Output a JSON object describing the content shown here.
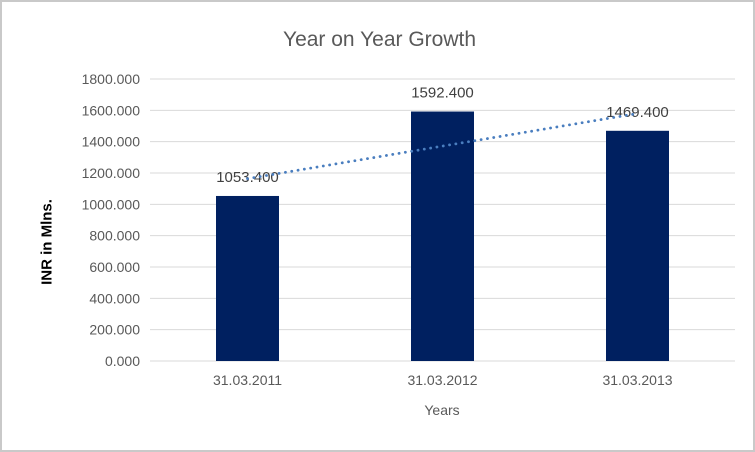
{
  "chart_data": {
    "type": "bar",
    "title": "Year on Year Growth",
    "xlabel": "Years",
    "ylabel": "INR in Mlns.",
    "categories": [
      "31.03.2011",
      "31.03.2012",
      "31.03.2013"
    ],
    "values": [
      1053.4,
      1592.4,
      1469.4
    ],
    "data_labels": [
      "1053.400",
      "1592.400",
      "1469.400"
    ],
    "ytick_labels": [
      "0.000",
      "200.000",
      "400.000",
      "600.000",
      "800.000",
      "1000.000",
      "1200.000",
      "1400.000",
      "1600.000",
      "1800.000"
    ],
    "ytick_step": 200,
    "ylim": [
      0,
      1800
    ],
    "grid": true,
    "legend": "none",
    "trendline": {
      "type": "linear",
      "style": "dotted",
      "color": "#4A7EBF"
    },
    "colors": {
      "bar": "#002060",
      "gridline": "#D9D9D9",
      "tick_label": "#595959",
      "title": "#595959",
      "data_label": "#404040",
      "frame_border": "#C9C9C9",
      "background": "#FFFFFF"
    }
  }
}
